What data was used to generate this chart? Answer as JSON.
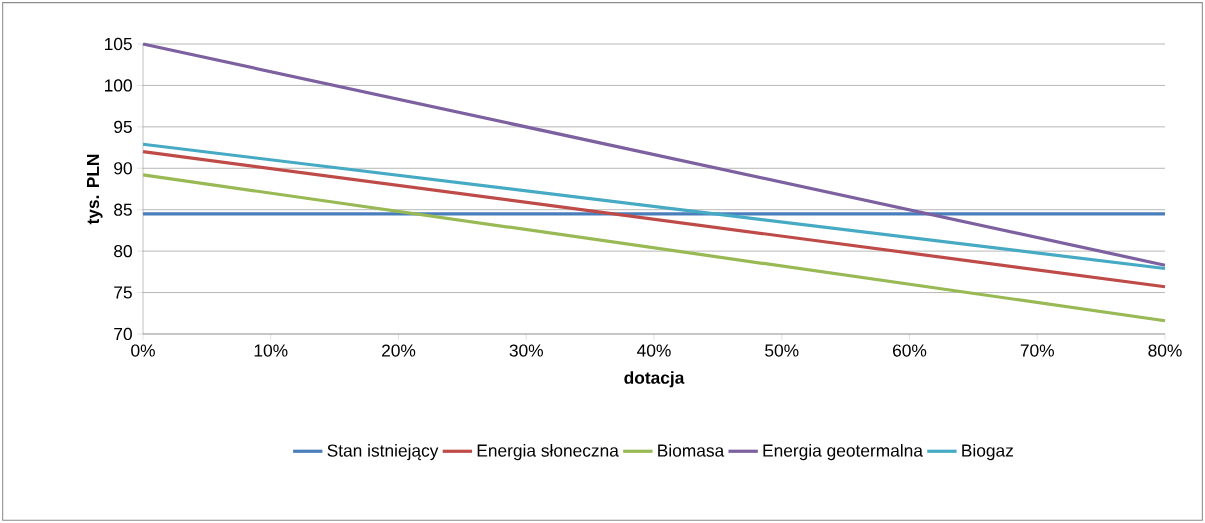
{
  "chart_data": {
    "type": "line",
    "xlabel": "dotacja",
    "ylabel": "tys. PLN",
    "x": [
      0,
      80
    ],
    "series": [
      {
        "name": "Stan istniejący",
        "color": "#4a7ebb",
        "values": [
          84.5,
          84.5
        ]
      },
      {
        "name": "Energia słoneczna",
        "color": "#be4b48",
        "values": [
          92,
          75.7
        ]
      },
      {
        "name": "Biomasa",
        "color": "#98b954",
        "values": [
          89.2,
          71.6
        ]
      },
      {
        "name": "Energia geotermalna",
        "color": "#7d60a0",
        "values": [
          105,
          78.3
        ]
      },
      {
        "name": "Biogaz",
        "color": "#46aac5",
        "values": [
          92.9,
          77.9
        ]
      }
    ],
    "xlim": [
      0,
      80
    ],
    "ylim": [
      70,
      105
    ],
    "xticks": [
      {
        "value": 0,
        "label": "0%"
      },
      {
        "value": 10,
        "label": "10%"
      },
      {
        "value": 20,
        "label": "20%"
      },
      {
        "value": 30,
        "label": "30%"
      },
      {
        "value": 40,
        "label": "40%"
      },
      {
        "value": 50,
        "label": "50%"
      },
      {
        "value": 60,
        "label": "60%"
      },
      {
        "value": 70,
        "label": "70%"
      },
      {
        "value": 80,
        "label": "80%"
      }
    ],
    "yticks": [
      70,
      75,
      80,
      85,
      90,
      95,
      100,
      105
    ],
    "grid": "y",
    "legend": "bottom",
    "marker": "none",
    "line_style": "solid"
  }
}
